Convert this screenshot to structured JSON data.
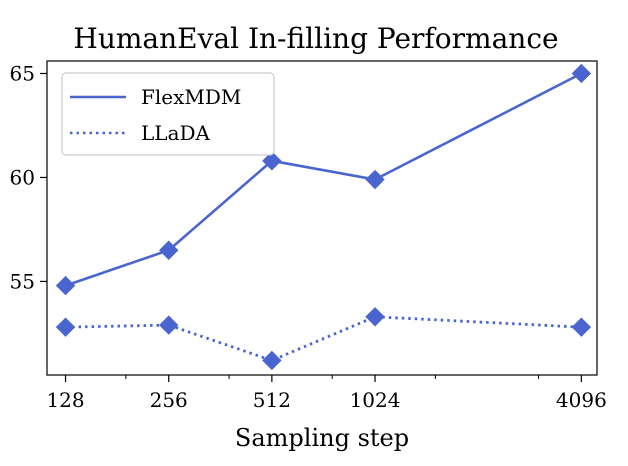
{
  "chart_data": {
    "type": "line",
    "title": "HumanEval In-filling Performance",
    "xlabel": "Sampling step",
    "ylabel": "",
    "x_scale": "log2",
    "x": [
      128,
      256,
      512,
      1024,
      4096
    ],
    "x_ticks": [
      "128",
      "256",
      "512",
      "1024",
      "4096"
    ],
    "y_ticks": [
      "55",
      "60",
      "65"
    ],
    "xlim": [
      113,
      4550
    ],
    "ylim": [
      50.5,
      65.6
    ],
    "grid": false,
    "legend_position": "top-left",
    "series": [
      {
        "name": "FlexMDM",
        "values": [
          54.8,
          56.5,
          60.8,
          59.9,
          65.0
        ],
        "color": "#4a65d0",
        "line_style": "solid",
        "marker": "diamond"
      },
      {
        "name": "LLaDA",
        "values": [
          52.8,
          52.9,
          51.2,
          53.3,
          52.8
        ],
        "color": "#4a65d0",
        "line_style": "dotted",
        "marker": "diamond"
      }
    ]
  }
}
